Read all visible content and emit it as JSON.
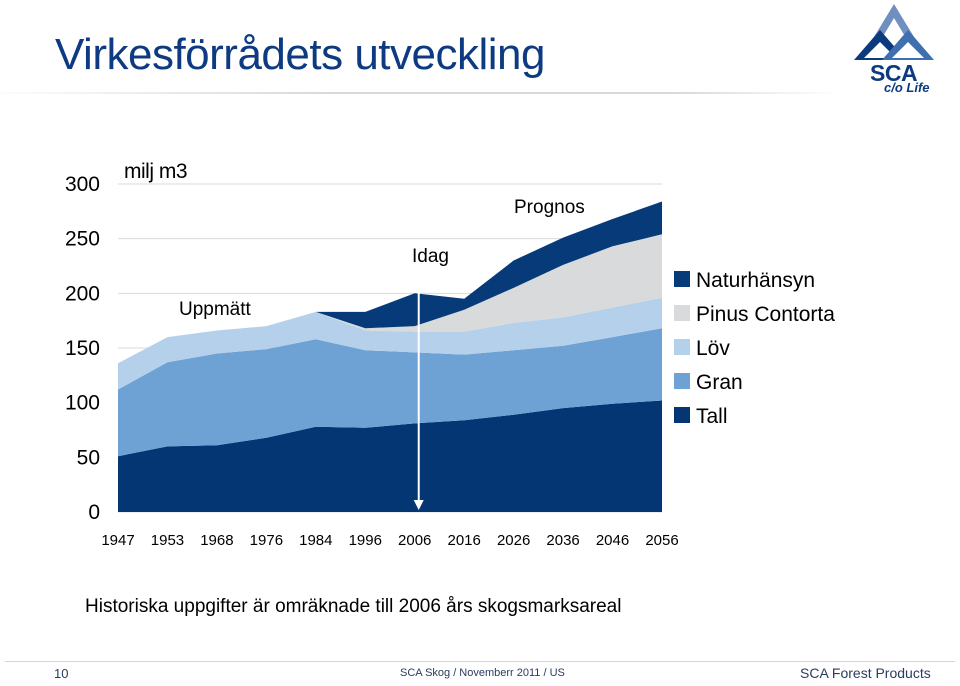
{
  "slide": {
    "title": "Virkesförrådets utveckling",
    "note": "Historiska uppgifter är omräknade till 2006 års skogsmarksareal"
  },
  "logo": {
    "name": "SCA",
    "tagline": "c/o Life"
  },
  "footer": {
    "page": "10",
    "center": "SCA Skog / Novemberr 2011 / US",
    "right": "SCA Forest Products"
  },
  "colors": {
    "tall": "#043673",
    "gran": "#6fa2d4",
    "lov": "#b5d0ea",
    "pinus": "#d9dadc",
    "naturhansyn": "#063a79",
    "arrow": "#ffffff"
  },
  "chart_data": {
    "type": "area",
    "stacked": true,
    "unit_label": "milj m3",
    "categories": [
      "1947",
      "1953",
      "1968",
      "1976",
      "1984",
      "1996",
      "2006",
      "2016",
      "2026",
      "2036",
      "2046",
      "2056"
    ],
    "ylim": [
      0,
      300
    ],
    "yticks": [
      "0",
      "50",
      "100",
      "150",
      "200",
      "250",
      "300"
    ],
    "series": [
      {
        "name": "Tall",
        "color_key": "tall",
        "values": [
          51,
          60,
          61,
          68,
          78,
          77,
          81,
          84,
          89,
          95,
          99,
          102
        ]
      },
      {
        "name": "Gran",
        "color_key": "gran",
        "values": [
          61,
          77,
          84,
          81,
          80,
          71,
          65,
          60,
          59,
          57,
          61,
          66
        ]
      },
      {
        "name": "Löv",
        "color_key": "lov",
        "values": [
          24,
          23,
          21,
          21,
          25,
          18,
          19,
          21,
          25,
          26,
          27,
          28
        ]
      },
      {
        "name": "Pinus Contorta",
        "color_key": "pinus",
        "values": [
          0,
          0,
          0,
          0,
          0,
          2,
          5,
          20,
          32,
          48,
          56,
          58
        ]
      },
      {
        "name": "Naturhänsyn",
        "color_key": "naturhansyn",
        "values": [
          0,
          0,
          0,
          0,
          0,
          15,
          30,
          10,
          25,
          25,
          25,
          30
        ]
      }
    ],
    "legend_order": [
      "Naturhänsyn",
      "Pinus Contorta",
      "Löv",
      "Gran",
      "Tall"
    ],
    "annotations": {
      "measured": "Uppmätt",
      "today": "Idag",
      "forecast": "Prognos"
    },
    "today_year": "2006"
  }
}
